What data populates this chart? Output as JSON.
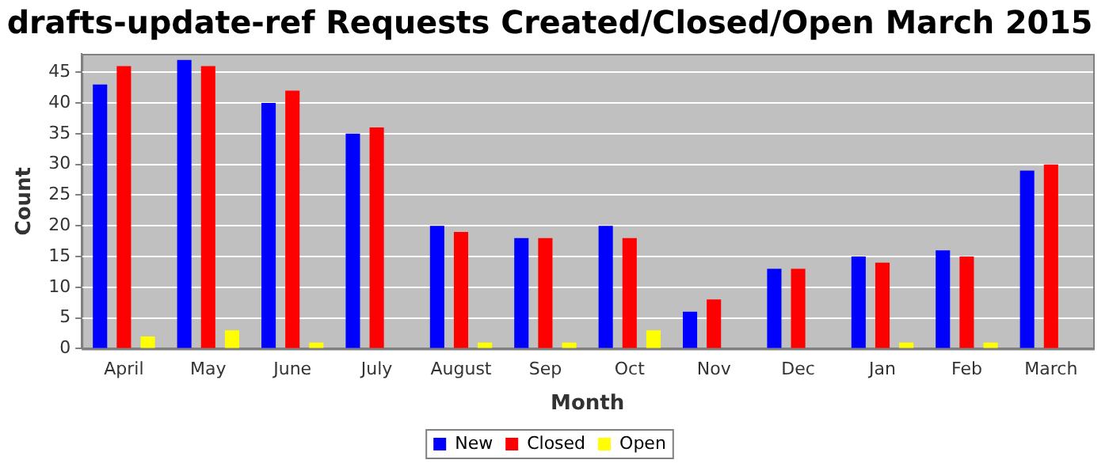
{
  "chart_data": {
    "type": "bar",
    "title": "drafts-update-ref Requests Created/Closed/Open March 2015",
    "xlabel": "Month",
    "ylabel": "Count",
    "categories": [
      "April",
      "May",
      "June",
      "July",
      "August",
      "Sep",
      "Oct",
      "Nov",
      "Dec",
      "Jan",
      "Feb",
      "March"
    ],
    "series": [
      {
        "name": "New",
        "color": "#0000ff",
        "values": [
          43,
          47,
          40,
          35,
          20,
          18,
          20,
          6,
          13,
          15,
          16,
          29
        ]
      },
      {
        "name": "Closed",
        "color": "#ff0000",
        "values": [
          46,
          46,
          42,
          36,
          19,
          18,
          18,
          8,
          13,
          14,
          15,
          30
        ]
      },
      {
        "name": "Open",
        "color": "#ffff00",
        "values": [
          2,
          3,
          1,
          0,
          1,
          1,
          3,
          0,
          0,
          1,
          1,
          0
        ]
      }
    ],
    "ylim": [
      0,
      48
    ],
    "yticks": [
      0,
      5,
      10,
      15,
      20,
      25,
      30,
      35,
      40,
      45
    ],
    "grid": "y",
    "legend": "bottom"
  }
}
